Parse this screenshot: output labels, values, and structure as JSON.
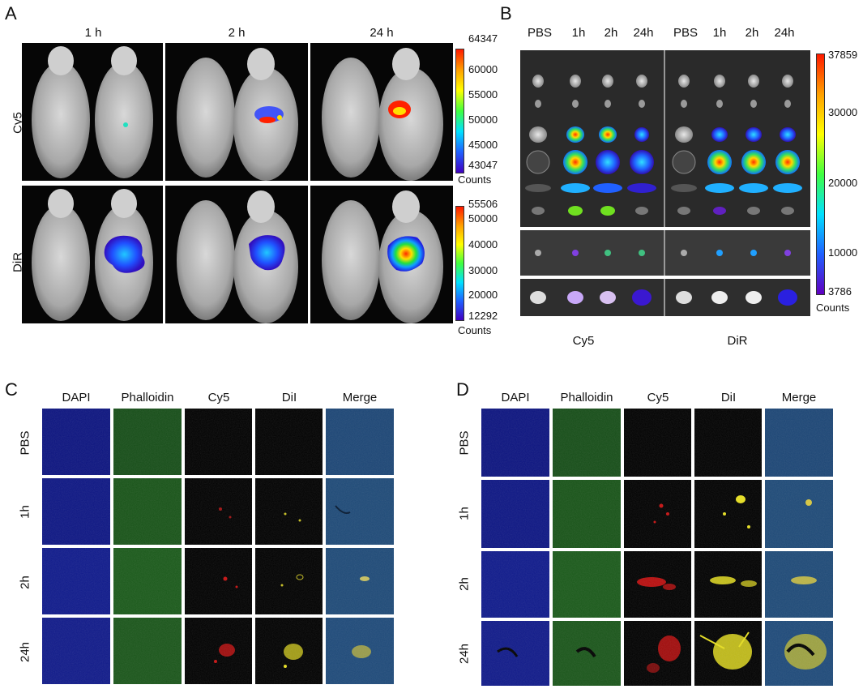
{
  "panels": {
    "A": {
      "label": "A",
      "columns": [
        "1 h",
        "2 h",
        "24 h"
      ],
      "rows": [
        "Cy5",
        "DiR"
      ],
      "colorbars": [
        {
          "ticks": [
            "64347",
            "60000",
            "55000",
            "50000",
            "45000",
            "43047"
          ],
          "unit": "Counts"
        },
        {
          "ticks": [
            "55506",
            "50000",
            "40000",
            "30000",
            "20000",
            "12292"
          ],
          "unit": "Counts"
        }
      ]
    },
    "B": {
      "label": "B",
      "columns": [
        "PBS",
        "1h",
        "2h",
        "24h",
        "PBS",
        "1h",
        "2h",
        "24h"
      ],
      "groups": [
        "Cy5",
        "DiR"
      ],
      "colorbar": {
        "ticks": [
          "37859",
          "30000",
          "20000",
          "10000",
          "3786"
        ],
        "unit": "Counts"
      }
    },
    "C": {
      "label": "C",
      "columns": [
        "DAPI",
        "Phalloidin",
        "Cy5",
        "DiI",
        "Merge"
      ],
      "rows": [
        "PBS",
        "1h",
        "2h",
        "24h"
      ]
    },
    "D": {
      "label": "D",
      "columns": [
        "DAPI",
        "Phalloidin",
        "Cy5",
        "DiI",
        "Merge"
      ],
      "rows": [
        "PBS",
        "1h",
        "2h",
        "24h"
      ]
    }
  },
  "colors": {
    "dapi": "#101a8a",
    "phalloidin": "#1a5a1a",
    "cy5": "#c81010",
    "dil": "#e8e020",
    "merge": "#1e4a78"
  }
}
